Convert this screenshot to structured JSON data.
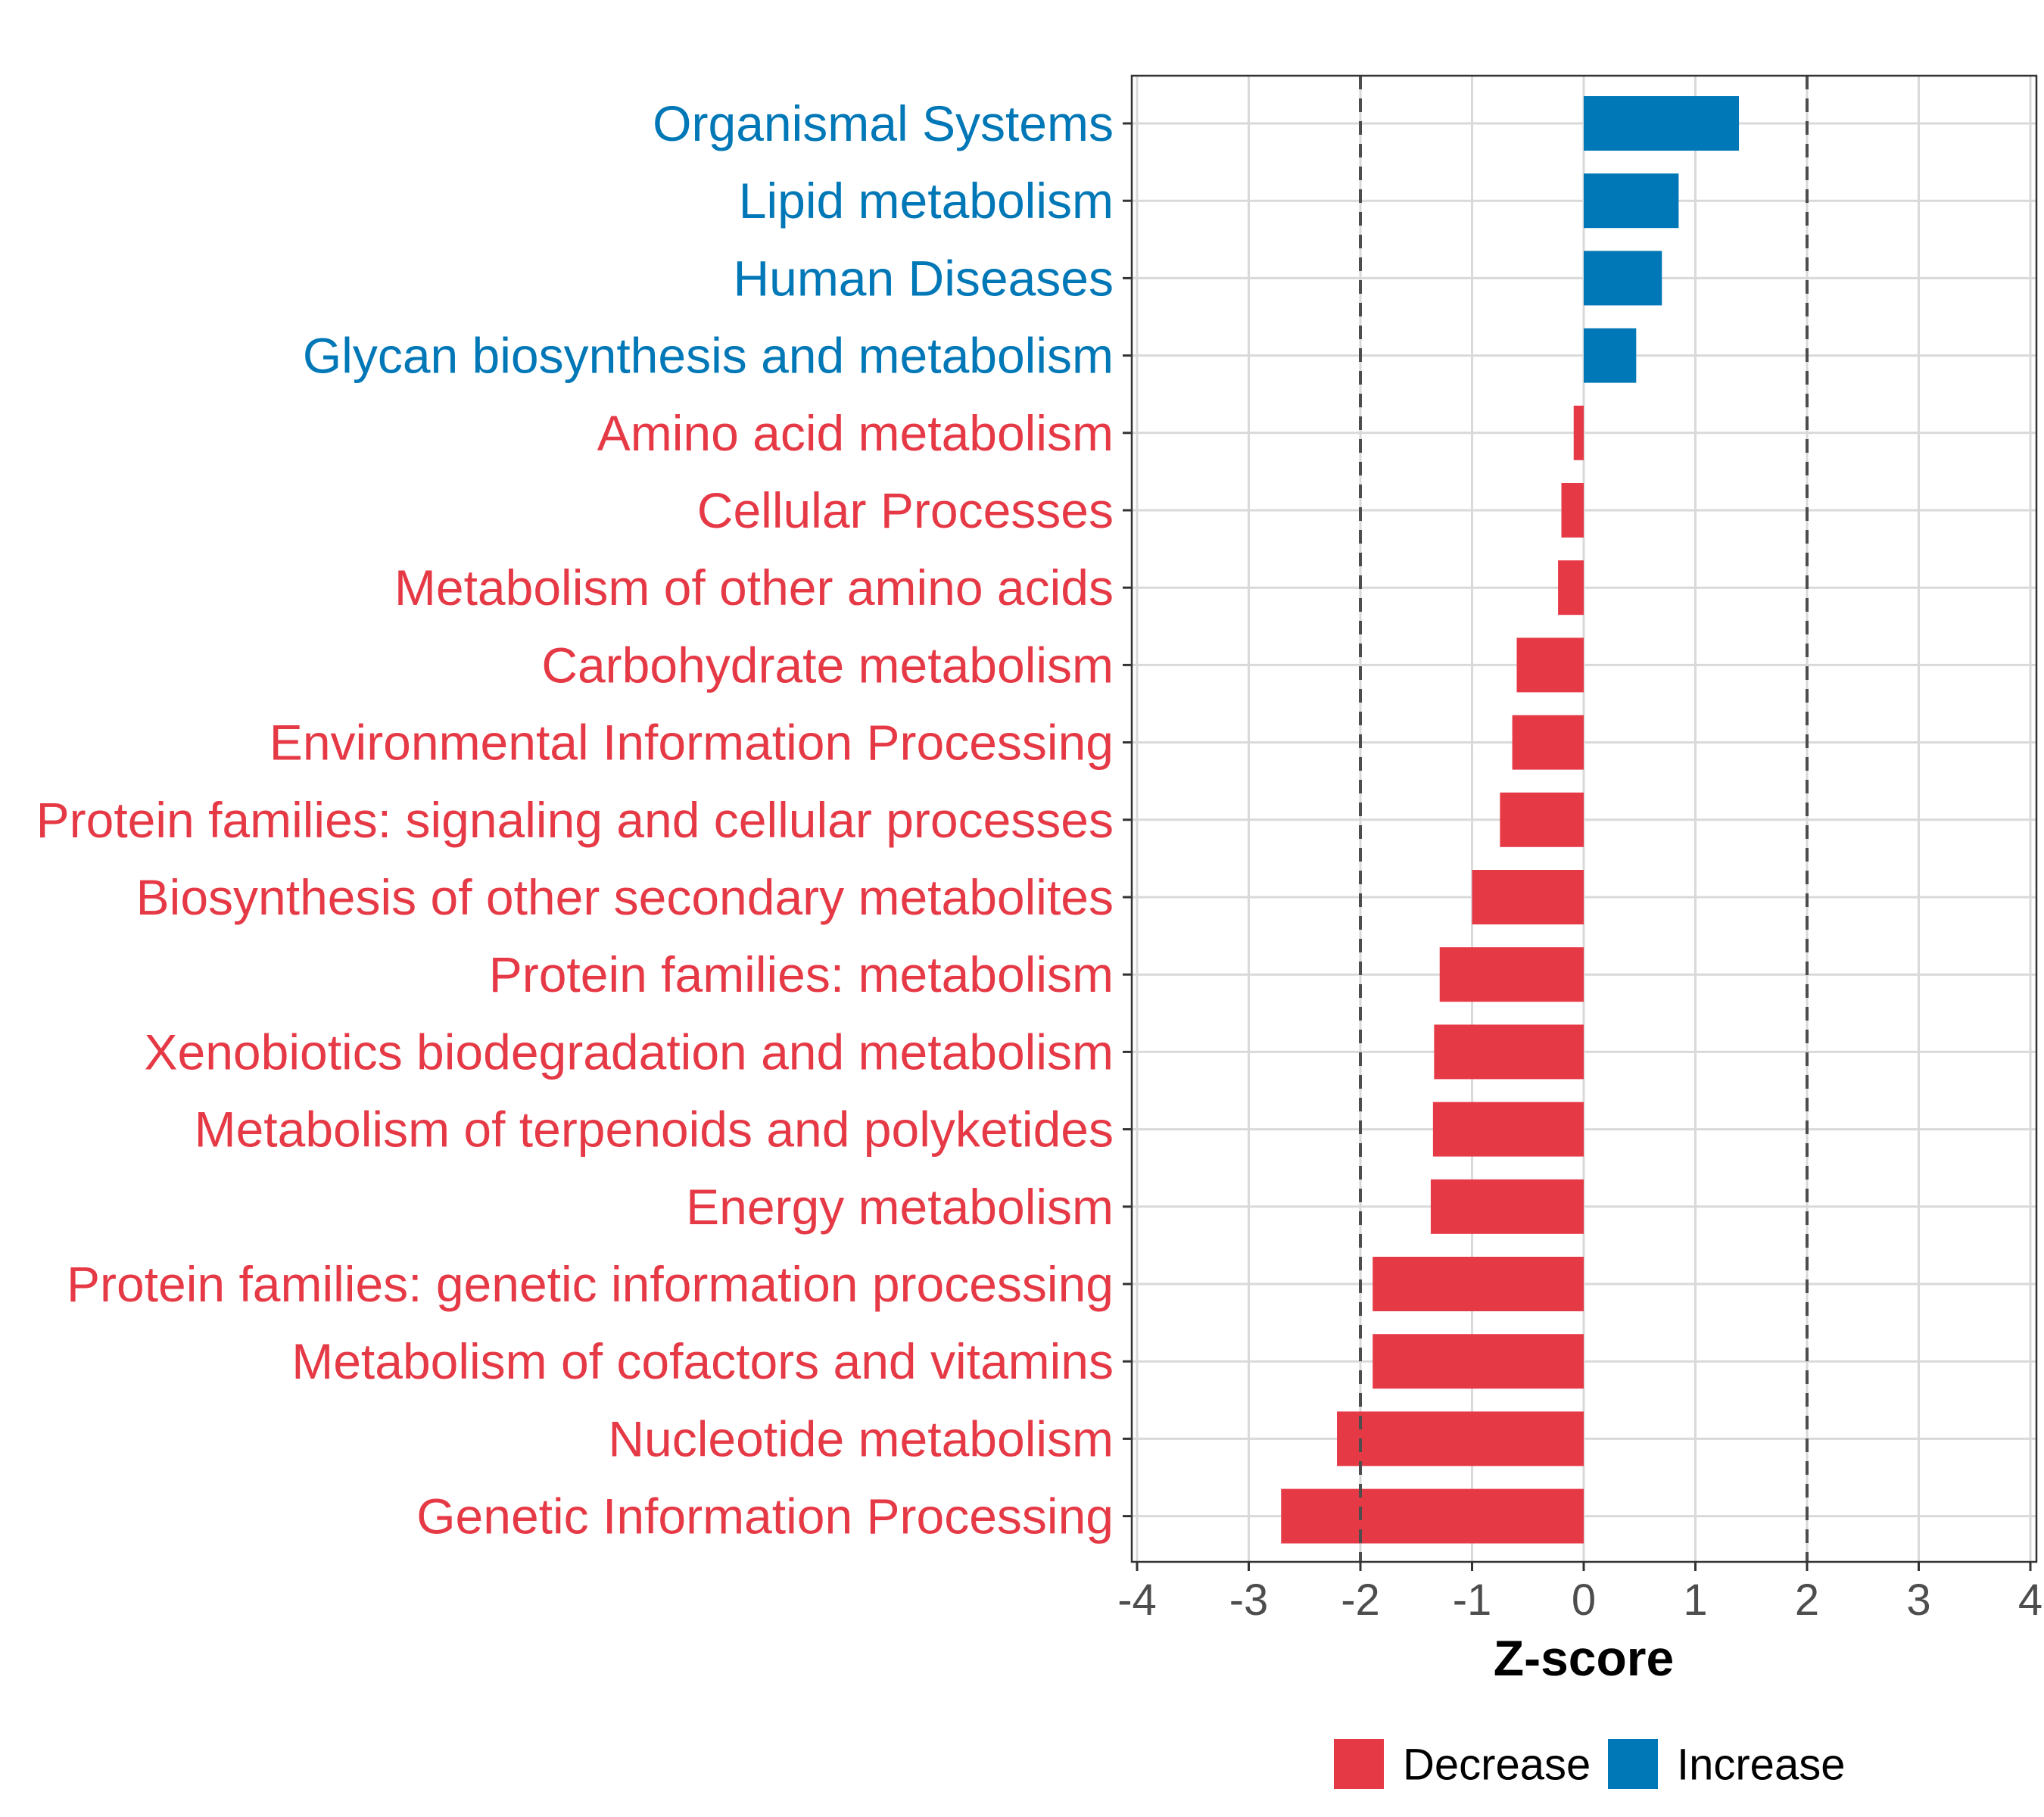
{
  "chart_data": {
    "type": "bar",
    "orientation": "horizontal",
    "title": "",
    "xlabel": "Z-score",
    "ylabel": "",
    "xlim": [
      -4,
      4
    ],
    "xticks": [
      -4,
      -3,
      -2,
      -1,
      0,
      1,
      2,
      3,
      4
    ],
    "xtick_labels": [
      "-4",
      "-3",
      "-2",
      "-1",
      "0",
      "1",
      "2",
      "3",
      "4"
    ],
    "threshold_lines": [
      -2,
      2
    ],
    "grid": true,
    "categories": [
      "Organismal Systems",
      "Lipid metabolism",
      "Human Diseases",
      "Glycan biosynthesis and metabolism",
      "Amino acid metabolism",
      "Cellular Processes",
      "Metabolism of other amino acids",
      "Carbohydrate metabolism",
      "Environmental Information Processing",
      "Protein families: signaling and cellular processes",
      "Biosynthesis of other secondary metabolites",
      "Protein families: metabolism",
      "Xenobiotics biodegradation and metabolism",
      "Metabolism of terpenoids and polyketides",
      "Energy metabolism",
      "Protein families: genetic information processing",
      "Metabolism of cofactors and vitamins",
      "Nucleotide metabolism",
      "Genetic Information Processing"
    ],
    "values": [
      1.39,
      0.85,
      0.7,
      0.47,
      -0.09,
      -0.2,
      -0.23,
      -0.6,
      -0.64,
      -0.75,
      -1.0,
      -1.29,
      -1.34,
      -1.35,
      -1.37,
      -1.89,
      -1.89,
      -2.21,
      -2.71
    ],
    "groups": [
      "Increase",
      "Increase",
      "Increase",
      "Increase",
      "Decrease",
      "Decrease",
      "Decrease",
      "Decrease",
      "Decrease",
      "Decrease",
      "Decrease",
      "Decrease",
      "Decrease",
      "Decrease",
      "Decrease",
      "Decrease",
      "Decrease",
      "Decrease",
      "Decrease"
    ],
    "legend": {
      "position": "bottom",
      "items": [
        {
          "label": "Decrease",
          "color": "#e63946"
        },
        {
          "label": "Increase",
          "color": "#0077b6"
        }
      ]
    },
    "colors": {
      "Decrease": "#e63946",
      "Increase": "#0077b6",
      "grid": "#d9d9d9",
      "threshold": "#4d4d4d",
      "axis": "#333333"
    }
  }
}
